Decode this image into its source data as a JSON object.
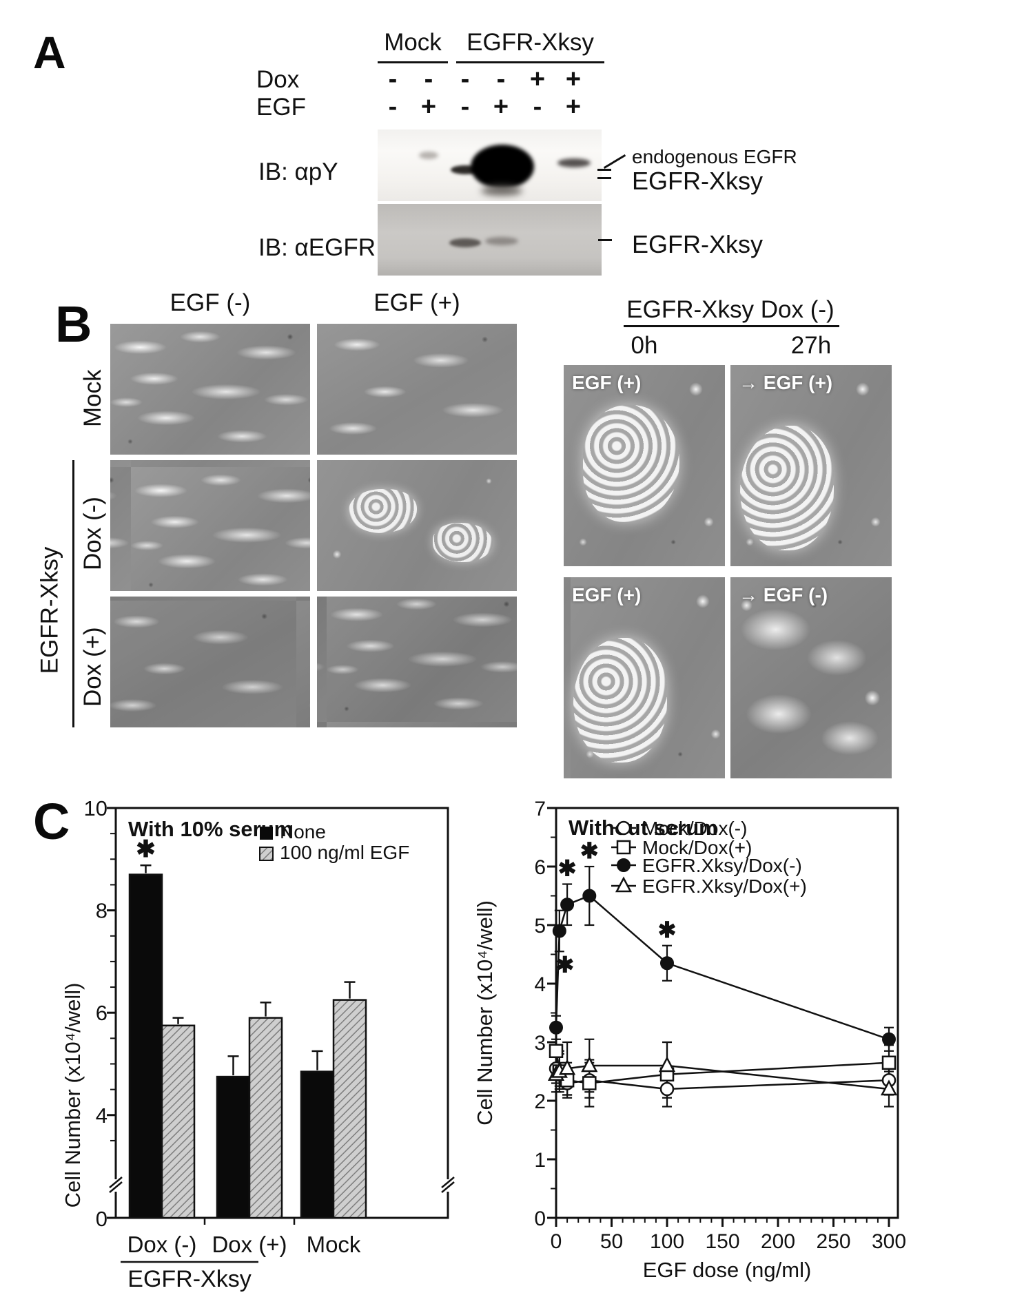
{
  "panel_a": {
    "label": "A",
    "group_headers": [
      {
        "label": "Mock"
      },
      {
        "label": "EGFR-Xksy"
      }
    ],
    "condition_rows": [
      {
        "label": "Dox",
        "values": [
          "-",
          "-",
          "-",
          "-",
          "+",
          "+"
        ]
      },
      {
        "label": "EGF",
        "values": [
          "-",
          "+",
          "-",
          "+",
          "-",
          "+"
        ]
      }
    ],
    "blots": [
      {
        "label": "IB: αpY"
      },
      {
        "label": "IB: αEGFR"
      }
    ],
    "annotations": {
      "blot1_top": "endogenous EGFR",
      "blot1_bottom": "EGFR-Xksy",
      "blot2": "EGFR-Xksy"
    }
  },
  "panel_b": {
    "label": "B",
    "left": {
      "col_headers": [
        "EGF (-)",
        "EGF (+)"
      ],
      "row_labels": [
        "Mock",
        "Dox (-)",
        "Dox (+)"
      ],
      "group_label": "EGFR-Xksy"
    },
    "right": {
      "header": "EGFR-Xksy  Dox (-)",
      "col_headers": [
        "0h",
        "27h"
      ],
      "image_labels": [
        [
          "EGF (+)",
          "→ EGF (+)"
        ],
        [
          "EGF (+)",
          "→ EGF (-)"
        ]
      ]
    }
  },
  "panel_c": {
    "label": "C"
  },
  "chart_data": [
    {
      "type": "bar",
      "title": "With 10% serum",
      "ylabel": "Cell Number (x10⁴/well)",
      "categories": [
        "Dox (-)",
        "Dox (+)",
        "Mock"
      ],
      "category_group": {
        "label": "EGFR-Xksy",
        "spans": [
          "Dox (-)",
          "Dox (+)"
        ]
      },
      "series": [
        {
          "name": "None",
          "fill": "black",
          "values": [
            8.7,
            4.75,
            4.85
          ],
          "errors": [
            0.18,
            0.4,
            0.4
          ],
          "significance": [
            "*",
            null,
            null
          ]
        },
        {
          "name": "100 ng/ml EGF",
          "fill": "hatched-gray",
          "values": [
            5.75,
            5.9,
            6.25
          ],
          "errors": [
            0.15,
            0.3,
            0.35
          ],
          "significance": [
            null,
            null,
            null
          ]
        }
      ],
      "ylim": [
        0,
        10
      ],
      "yticks": [
        0,
        4,
        6,
        8,
        10
      ],
      "axis_break": true,
      "grid": false,
      "legend_position": "top-right"
    },
    {
      "type": "line",
      "title": "Without serum",
      "xlabel": "EGF dose (ng/ml)",
      "ylabel": "Cell Number (x10⁴/well)",
      "x": [
        0,
        3,
        10,
        30,
        100,
        300
      ],
      "series": [
        {
          "name": "Mock/Dox(-)",
          "marker": "open-circle",
          "values": [
            2.55,
            2.45,
            2.3,
            2.35,
            2.2,
            2.35
          ],
          "errors": [
            0.25,
            0.2,
            0.2,
            0.3,
            0.15,
            0.25
          ],
          "significance": [
            null,
            null,
            null,
            null,
            null,
            null
          ]
        },
        {
          "name": "Mock/Dox(+)",
          "marker": "open-square",
          "values": [
            2.85,
            2.5,
            2.35,
            2.3,
            2.45,
            2.65
          ],
          "errors": [
            0.45,
            0.3,
            0.3,
            0.4,
            0.55,
            0.3
          ],
          "significance": [
            null,
            null,
            null,
            null,
            null,
            null
          ]
        },
        {
          "name": "EGFR.Xksy/Dox(-)",
          "marker": "filled-circle",
          "values": [
            3.25,
            4.9,
            5.35,
            5.5,
            4.35,
            3.05
          ],
          "errors": [
            0.2,
            0.35,
            0.35,
            0.5,
            0.3,
            0.2
          ],
          "significance": [
            null,
            "below",
            "above",
            "above",
            "above",
            null
          ]
        },
        {
          "name": "EGFR.Xksy/Dox(+)",
          "marker": "open-triangle",
          "values": [
            2.45,
            2.5,
            2.55,
            2.6,
            2.6,
            2.2
          ],
          "errors": [
            0.3,
            0.35,
            0.45,
            0.45,
            0.4,
            0.3
          ],
          "significance": [
            null,
            null,
            null,
            null,
            null,
            null
          ]
        }
      ],
      "xlim": [
        0,
        308
      ],
      "ylim": [
        0,
        7
      ],
      "xticks": [
        0,
        50,
        100,
        150,
        200,
        250,
        300
      ],
      "yticks": [
        0,
        1,
        2,
        3,
        4,
        5,
        6,
        7
      ],
      "grid": false,
      "legend_position": "top-right"
    }
  ]
}
